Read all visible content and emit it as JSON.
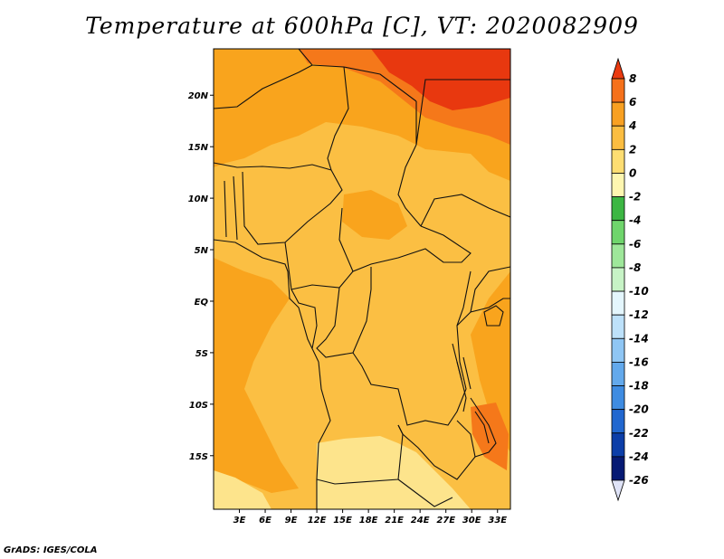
{
  "title": "Temperature at 600hPa [C], VT: 2020082909",
  "credit": "GrADS: IGES/COLA",
  "map": {
    "lat_labels": [
      {
        "label": "20N",
        "lat": 20
      },
      {
        "label": "15N",
        "lat": 15
      },
      {
        "label": "10N",
        "lat": 10
      },
      {
        "label": "5N",
        "lat": 5
      },
      {
        "label": "EQ",
        "lat": 0
      },
      {
        "label": "5S",
        "lat": -5
      },
      {
        "label": "10S",
        "lat": -10
      },
      {
        "label": "15S",
        "lat": -15
      }
    ],
    "lon_labels": [
      {
        "label": "3E",
        "lon": 3
      },
      {
        "label": "6E",
        "lon": 6
      },
      {
        "label": "9E",
        "lon": 9
      },
      {
        "label": "12E",
        "lon": 12
      },
      {
        "label": "15E",
        "lon": 15
      },
      {
        "label": "18E",
        "lon": 18
      },
      {
        "label": "21E",
        "lon": 21
      },
      {
        "label": "24E",
        "lon": 24
      },
      {
        "label": "27E",
        "lon": 27
      },
      {
        "label": "30E",
        "lon": 30
      },
      {
        "label": "33E",
        "lon": 33
      }
    ],
    "field_colors": {
      "t0_2": "#fbbf43",
      "t2_4": "#f9a41d",
      "t4_6": "#f5781a",
      "t6_8": "#e8380f",
      "tm2_0": "#fde48c"
    }
  },
  "colorbar": {
    "labels": [
      "8",
      "6",
      "4",
      "2",
      "0",
      "-2",
      "-4",
      "-6",
      "-8",
      "-10",
      "-12",
      "-14",
      "-16",
      "-18",
      "-20",
      "-22",
      "-24",
      "-26"
    ],
    "colors": [
      "#ea3a10",
      "#f5711b",
      "#f8a022",
      "#fbbd41",
      "#fddd72",
      "#fef6b0",
      "#3cb643",
      "#6fd56c",
      "#9ee79a",
      "#c7f3c6",
      "#e4f6fd",
      "#bde1fa",
      "#8fc6f4",
      "#63a9ec",
      "#3f8ce2",
      "#2167cf",
      "#0c3ea8",
      "#061a74",
      "#dfe3f7"
    ]
  }
}
